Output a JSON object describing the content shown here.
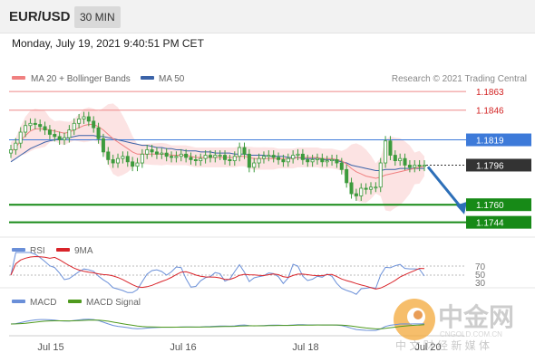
{
  "header": {
    "pair": "EUR/USD",
    "timeframe": "30 MIN"
  },
  "datetime": "Monday, July 19, 2021 9:40:51 PM CET",
  "legend": {
    "ma20": "MA 20 + Bollinger Bands",
    "ma50": "MA 50",
    "credit": "Research © 2021 Trading Central"
  },
  "colors": {
    "ma20": "#f08080",
    "ma50": "#3b63a8",
    "bollinger_fill": "#fbdede",
    "support": "#178a17",
    "resistance": "#ee8888",
    "pivot": "#3d7ad9",
    "candle": "#3d9b3d",
    "arrow": "#2d6fb8",
    "last_price_tag": "#333333",
    "rsi": "#6a8fd8",
    "rsi_ma": "#d9242a",
    "macd": "#6a8fd8",
    "macd_signal": "#4f9a1e"
  },
  "watermark": {
    "brand": "中金网",
    "domain": "CNGOLD.COM.CN",
    "slogan": "中 文 财 经 新 媒 体"
  },
  "chart_data": {
    "type": "candlestick",
    "x": {
      "tick_labels": [
        "Jul 15",
        "Jul 16",
        "Jul 18",
        "Jul 20"
      ]
    },
    "y": {
      "ylim": [
        1.1733,
        1.1868
      ]
    },
    "levels": [
      {
        "label": "1.1863",
        "value": 1.1863,
        "kind": "resistance"
      },
      {
        "label": "1.1846",
        "value": 1.1846,
        "kind": "resistance"
      },
      {
        "label": "1.1819",
        "value": 1.1819,
        "kind": "pivot"
      },
      {
        "label": "1.1796",
        "value": 1.1796,
        "kind": "last"
      },
      {
        "label": "1.1760",
        "value": 1.176,
        "kind": "support"
      },
      {
        "label": "1.1744",
        "value": 1.1744,
        "kind": "support"
      }
    ],
    "close": [
      1.181,
      1.1816,
      1.1826,
      1.1832,
      1.1834,
      1.1833,
      1.1831,
      1.1828,
      1.1824,
      1.1822,
      1.1819,
      1.1821,
      1.1828,
      1.1834,
      1.1838,
      1.184,
      1.1836,
      1.183,
      1.182,
      1.1808,
      1.1801,
      1.1798,
      1.1802,
      1.1804,
      1.1799,
      1.1795,
      1.1798,
      1.1806,
      1.181,
      1.1808,
      1.1806,
      1.1807,
      1.1804,
      1.1803,
      1.1804,
      1.1806,
      1.1803,
      1.1801,
      1.18,
      1.1802,
      1.1805,
      1.1803,
      1.1805,
      1.1805,
      1.1801,
      1.18,
      1.1804,
      1.1812,
      1.1806,
      1.1794,
      1.1798,
      1.1802,
      1.1804,
      1.1805,
      1.1803,
      1.1801,
      1.1799,
      1.1802,
      1.1805,
      1.1806,
      1.1801,
      1.1799,
      1.1801,
      1.1802,
      1.1799,
      1.18,
      1.1801,
      1.1798,
      1.1792,
      1.178,
      1.177,
      1.1768,
      1.1775,
      1.1774,
      1.1776,
      1.1776,
      1.1798,
      1.1818,
      1.1805,
      1.18,
      1.1802,
      1.1796,
      1.1794,
      1.1796,
      1.1795,
      1.1796
    ],
    "series": [
      {
        "name": "MA 20 + Bollinger Bands",
        "values": [
          1.1808,
          1.1812,
          1.1818,
          1.1823,
          1.1827,
          1.1829,
          1.1829,
          1.1829,
          1.1828,
          1.1827,
          1.1826,
          1.1825,
          1.1826,
          1.1828,
          1.183,
          1.1832,
          1.1833,
          1.1833,
          1.1831,
          1.1828,
          1.1824,
          1.182,
          1.1817,
          1.1814,
          1.1811,
          1.1808,
          1.1806,
          1.1806,
          1.1806,
          1.1806,
          1.1806,
          1.1806,
          1.1806,
          1.1805,
          1.1805,
          1.1805,
          1.1805,
          1.1804,
          1.1803,
          1.1803,
          1.1803,
          1.1803,
          1.1803,
          1.1803,
          1.1803,
          1.1803,
          1.1803,
          1.1804,
          1.1804,
          1.1803,
          1.1802,
          1.1802,
          1.1802,
          1.1802,
          1.1802,
          1.1802,
          1.1802,
          1.1802,
          1.1802,
          1.1803,
          1.1803,
          1.1803,
          1.1803,
          1.1803,
          1.1802,
          1.1802,
          1.1802,
          1.1801,
          1.18,
          1.1797,
          1.1793,
          1.179,
          1.1788,
          1.1786,
          1.1785,
          1.1784,
          1.1785,
          1.1787,
          1.1788,
          1.1789,
          1.179,
          1.1791,
          1.1792,
          1.1793,
          1.1794,
          1.1795
        ]
      },
      {
        "name": "MA 50",
        "values": [
          1.1799,
          1.1802,
          1.1805,
          1.1808,
          1.1811,
          1.1813,
          1.1815,
          1.1817,
          1.1818,
          1.1819,
          1.182,
          1.182,
          1.1821,
          1.1822,
          1.1823,
          1.1823,
          1.1823,
          1.1823,
          1.1822,
          1.1822,
          1.1821,
          1.182,
          1.1819,
          1.1818,
          1.1817,
          1.1816,
          1.1815,
          1.1814,
          1.1814,
          1.1813,
          1.1812,
          1.1812,
          1.1811,
          1.1811,
          1.181,
          1.181,
          1.1809,
          1.1809,
          1.1809,
          1.1808,
          1.1808,
          1.1808,
          1.1807,
          1.1807,
          1.1807,
          1.1807,
          1.1806,
          1.1806,
          1.1806,
          1.1805,
          1.1805,
          1.1805,
          1.1805,
          1.1804,
          1.1804,
          1.1804,
          1.1804,
          1.1803,
          1.1803,
          1.1803,
          1.1802,
          1.1802,
          1.1802,
          1.1802,
          1.1801,
          1.1801,
          1.1801,
          1.18,
          1.1799,
          1.1798,
          1.1796,
          1.1795,
          1.1794,
          1.1793,
          1.1792,
          1.1791,
          1.1791,
          1.1792,
          1.1792,
          1.1792,
          1.1793,
          1.1793,
          1.1793,
          1.1793,
          1.1793,
          1.1793
        ]
      }
    ],
    "projection": {
      "from": 1.1796,
      "to": 1.1752,
      "direction": "down"
    },
    "rsi": {
      "legend": [
        "RSI",
        "9MA"
      ],
      "tick_labels": [
        "70",
        "50",
        "30"
      ]
    },
    "macd": {
      "legend": [
        "MACD",
        "MACD Signal"
      ]
    }
  }
}
